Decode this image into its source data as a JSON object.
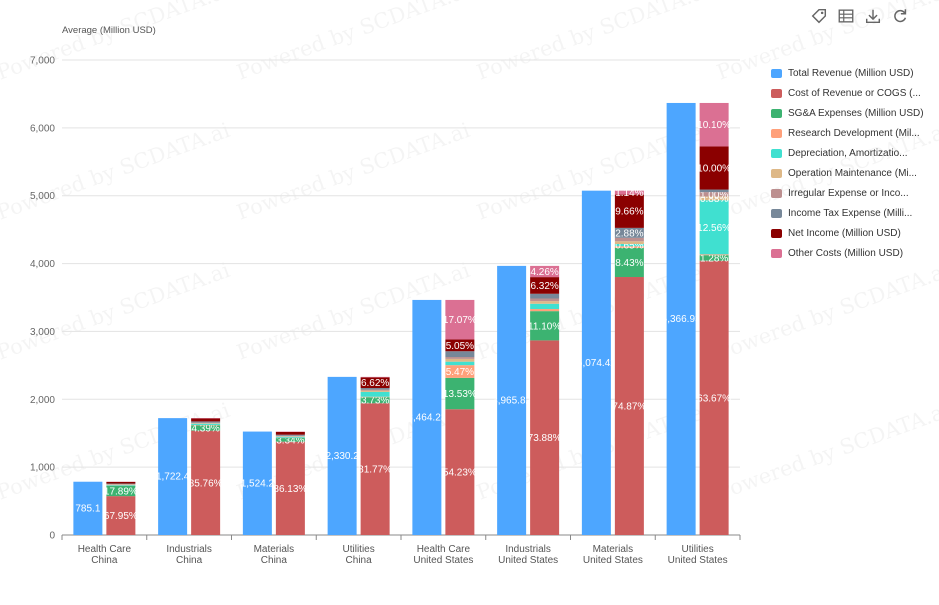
{
  "toolbar": {
    "icons": [
      "tag-icon",
      "table-icon",
      "download-icon",
      "refresh-icon"
    ]
  },
  "watermark": "Powered by SCDATA.ai",
  "colors": {
    "Total Revenue (Million USD)": "#4da6ff",
    "Cost of Revenue or COGS (...": "#cd5c5c",
    "SG&A Expenses (Million USD)": "#3cb371",
    "Research Development (Mil...": "#ffa07a",
    "Depreciation, Amortizatio...": "#40e0d0",
    "Operation Maintenance (Mi...": "#deb887",
    "Irregular Expense or Inco...": "#bc8f8f",
    "Income Tax Expense (Milli...": "#778899",
    "Net Income (Million USD)": "#8b0000",
    "Other Costs (Million USD)": "#db7093"
  },
  "chart_data": {
    "type": "bar",
    "ylabel": "Average (Million USD)",
    "ylim": [
      0,
      7000
    ],
    "yticks": [
      "0",
      "1,000",
      "2,000",
      "3,000",
      "4,000",
      "5,000",
      "6,000",
      "7,000"
    ],
    "grid": true,
    "legend_position": "right",
    "categories": [
      [
        "Health Care",
        "China"
      ],
      [
        "Industrials",
        "China"
      ],
      [
        "Materials",
        "China"
      ],
      [
        "Utilities",
        "China"
      ],
      [
        "Health Care",
        "United States"
      ],
      [
        "Industrials",
        "United States"
      ],
      [
        "Materials",
        "United States"
      ],
      [
        "Utilities",
        "United States"
      ]
    ],
    "total_revenue": {
      "name": "Total Revenue (Million USD)",
      "values": [
        785.1,
        1722.4,
        1524.2,
        2330.2,
        3464.23,
        3965.82,
        5074.42,
        6366.93
      ],
      "labels": [
        "785.1",
        "1,722.4",
        "1,524.2",
        "2,330.2",
        "3,464.23",
        "3,965.82",
        "5,074.42",
        "6,366.93"
      ]
    },
    "breakdown_series": [
      {
        "name": "Cost of Revenue or COGS (...",
        "values": [
          67.95,
          85.76,
          86.13,
          81.77,
          54.23,
          73.88,
          74.87,
          63.67
        ],
        "labels": [
          "67.95%",
          "85.76%",
          "86.13%",
          "81.77%",
          "54.23%",
          "73.88%",
          "74.87%",
          "63.67%"
        ]
      },
      {
        "name": "SG&A Expenses (Million USD)",
        "values": [
          17.89,
          4.39,
          3.34,
          3.73,
          13.53,
          11.1,
          8.43,
          1.28
        ],
        "labels": [
          "17.89%",
          "4.39%",
          "3.34%",
          "3.73%",
          "13.53%",
          "11.10%",
          "8.43%",
          "1.28%"
        ]
      },
      {
        "name": "Research Development (Mil...",
        "values": [
          0.5,
          0.3,
          0.3,
          0.3,
          5.47,
          0.8,
          0.5,
          0.2
        ],
        "labels": [
          "",
          "",
          "",
          "",
          "5.47%",
          "",
          "",
          ""
        ]
      },
      {
        "name": "Depreciation, Amortizatio...",
        "values": [
          1.2,
          1.0,
          0.9,
          3.0,
          1.5,
          2.0,
          0.65,
          12.56
        ],
        "labels": [
          "",
          "",
          "",
          "",
          "",
          "",
          "0.65%",
          "12.56%"
        ]
      },
      {
        "name": "Operation Maintenance (Mi...",
        "values": [
          0.8,
          0.5,
          0.5,
          0.8,
          1.2,
          1.0,
          0.8,
          0.88
        ],
        "labels": [
          "",
          "",
          "",
          "",
          "",
          "",
          "",
          "0.88%"
        ]
      },
      {
        "name": "Irregular Expense or Inco...",
        "values": [
          0.6,
          0.4,
          0.4,
          0.6,
          0.8,
          1.0,
          1.0,
          1.0
        ],
        "labels": [
          "",
          "",
          "",
          "",
          "",
          "",
          "",
          "1.00%"
        ]
      },
      {
        "name": "Income Tax Expense (Milli...",
        "values": [
          1.0,
          1.0,
          1.0,
          1.0,
          2.5,
          1.8,
          2.88,
          0.6
        ],
        "labels": [
          "",
          "",
          "",
          "",
          "",
          "",
          "2.88%",
          ""
        ]
      },
      {
        "name": "Net Income (Million USD)",
        "values": [
          2.9,
          2.4,
          2.6,
          6.62,
          5.05,
          6.32,
          9.66,
          10.0
        ],
        "labels": [
          "",
          "",
          "",
          "6.62%",
          "5.05%",
          "6.32%",
          "9.66%",
          "10.00%"
        ]
      },
      {
        "name": "Other Costs (Million USD)",
        "values": [
          0.3,
          0.3,
          0.3,
          0.3,
          17.07,
          4.26,
          1.14,
          10.1
        ],
        "labels": [
          "",
          "",
          "",
          "",
          "17.07%",
          "4.26%",
          "1.14%",
          "10.10%"
        ]
      }
    ]
  }
}
